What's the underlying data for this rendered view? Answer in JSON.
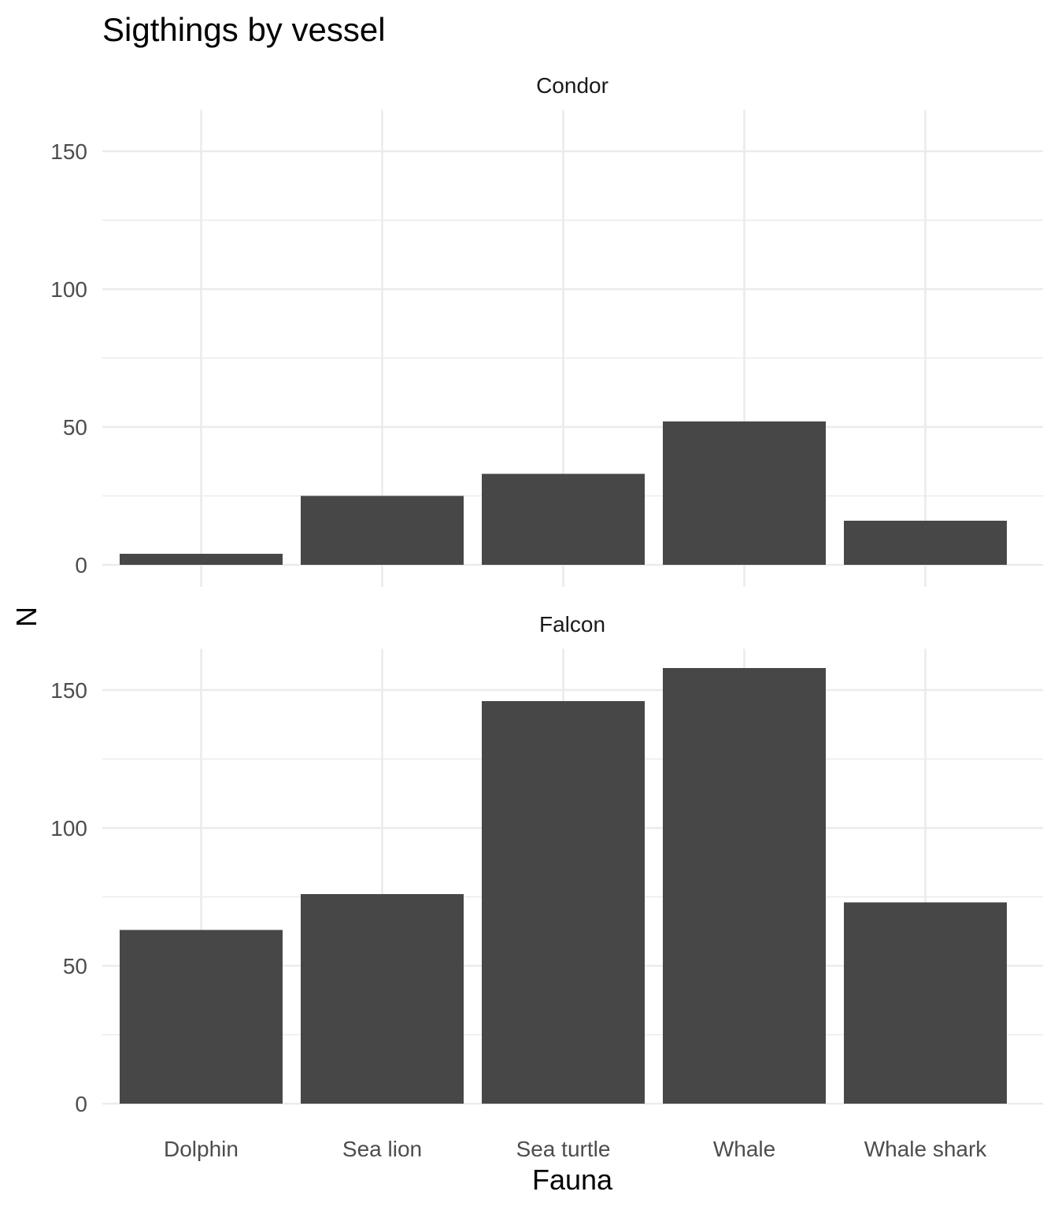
{
  "chart_data": {
    "type": "bar",
    "title": "Sigthings by vessel",
    "xlabel": "Fauna",
    "ylabel": "N",
    "categories": [
      "Dolphin",
      "Sea lion",
      "Sea turtle",
      "Whale",
      "Whale shark"
    ],
    "ylim": [
      0,
      165
    ],
    "y_ticks": [
      0,
      50,
      100,
      150
    ],
    "grid": true,
    "bar_color": "#474747",
    "facets": [
      {
        "name": "Condor",
        "values": [
          4,
          25,
          33,
          52,
          16
        ]
      },
      {
        "name": "Falcon",
        "values": [
          63,
          76,
          146,
          158,
          73
        ]
      }
    ]
  }
}
